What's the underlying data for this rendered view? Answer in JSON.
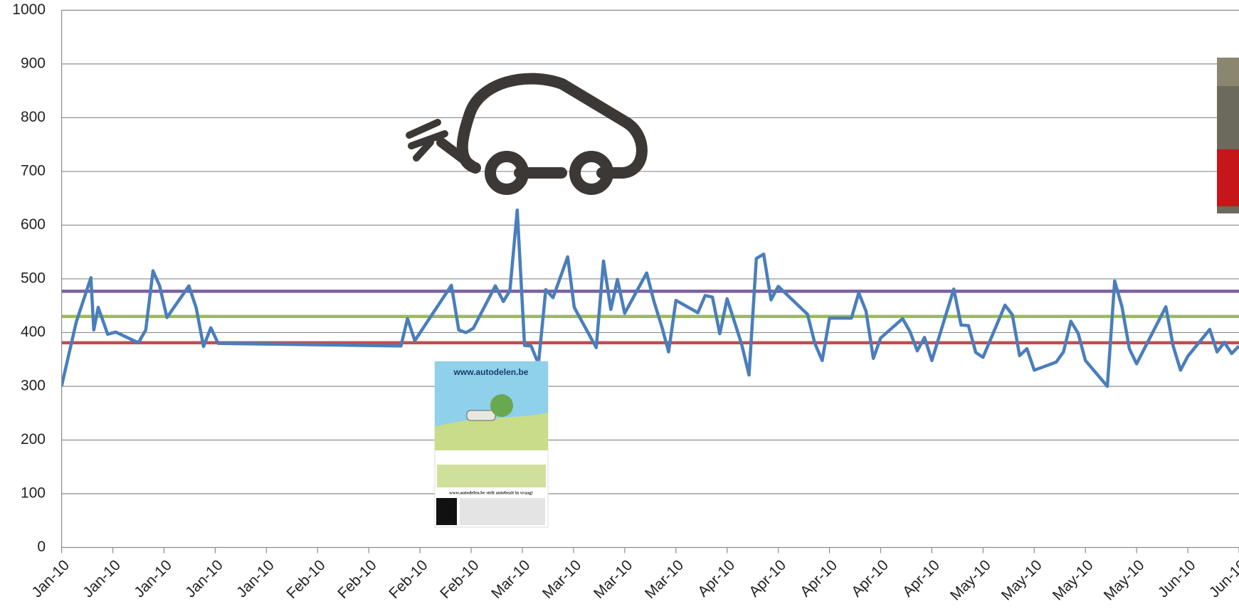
{
  "chart_data": {
    "type": "line",
    "x": [
      0,
      2,
      4,
      4.4,
      5,
      6.3,
      7.4,
      10.5,
      11.5,
      12.5,
      13.4,
      14.4,
      17.4,
      18.4,
      19.4,
      20.4,
      21.4,
      46.4,
      47.3,
      48.3,
      53.3,
      54.3,
      55.3,
      56.3,
      59.3,
      60.4,
      61.3,
      62.3,
      63.3,
      64.2,
      65.2,
      66.2,
      67.2,
      69.2,
      70.1,
      73.1,
      74.1,
      75.1,
      76,
      77,
      80,
      81,
      82.1,
      83,
      84,
      87,
      88,
      89,
      90,
      91,
      93,
      94,
      95,
      96,
      97,
      98,
      102,
      103,
      104,
      105,
      108,
      109,
      110,
      111,
      112,
      115,
      116,
      117,
      118,
      119,
      122,
      123,
      124,
      125,
      126,
      129,
      130,
      131,
      132,
      133,
      136,
      137,
      138,
      139,
      140,
      143,
      144,
      145,
      146,
      147,
      151,
      152,
      153,
      154,
      157,
      158,
      159,
      160,
      161
    ],
    "series": [
      {
        "color": "#4a7ebb",
        "values": [
          301,
          420,
          502,
          405,
          447,
          397,
          401,
          381,
          405,
          515,
          487,
          428,
          487,
          446,
          374,
          409,
          380,
          375,
          426,
          385,
          488,
          405,
          400,
          408,
          487,
          458,
          478,
          628,
          376,
          375,
          342,
          480,
          465,
          541,
          447,
          372,
          533,
          443,
          499,
          436,
          511,
          458,
          410,
          364,
          460,
          437,
          469,
          466,
          398,
          463,
          378,
          321,
          538,
          546,
          461,
          486,
          434,
          380,
          348,
          427,
          427,
          474,
          440,
          352,
          390,
          426,
          402,
          366,
          391,
          348,
          481,
          414,
          413,
          363,
          354,
          451,
          433,
          357,
          370,
          330,
          345,
          364,
          421,
          399,
          348,
          300,
          496,
          448,
          370,
          342,
          448,
          375,
          330,
          356,
          406,
          364,
          382,
          361,
          375
        ]
      }
    ],
    "reference_lines": [
      {
        "value": 477,
        "color": "#7d5fa0"
      },
      {
        "value": 430,
        "color": "#9bbb59"
      },
      {
        "value": 381,
        "color": "#c0504d"
      }
    ],
    "xlim": [
      0,
      161
    ],
    "xticks": [
      {
        "value": 0,
        "label": "Jan-10"
      },
      {
        "value": 7,
        "label": "Jan-10"
      },
      {
        "value": 14,
        "label": "Jan-10"
      },
      {
        "value": 21,
        "label": "Jan-10"
      },
      {
        "value": 28,
        "label": "Jan-10"
      },
      {
        "value": 35,
        "label": "Feb-10"
      },
      {
        "value": 42,
        "label": "Feb-10"
      },
      {
        "value": 49,
        "label": "Feb-10"
      },
      {
        "value": 56,
        "label": "Feb-10"
      },
      {
        "value": 63,
        "label": "Mar-10"
      },
      {
        "value": 70,
        "label": "Mar-10"
      },
      {
        "value": 77,
        "label": "Mar-10"
      },
      {
        "value": 84,
        "label": "Mar-10"
      },
      {
        "value": 91,
        "label": "Apr-10"
      },
      {
        "value": 98,
        "label": "Apr-10"
      },
      {
        "value": 105,
        "label": "Apr-10"
      },
      {
        "value": 112,
        "label": "Apr-10"
      },
      {
        "value": 119,
        "label": "Apr-10"
      },
      {
        "value": 126,
        "label": "May-10"
      },
      {
        "value": 133,
        "label": "May-10"
      },
      {
        "value": 140,
        "label": "May-10"
      },
      {
        "value": 147,
        "label": "May-10"
      },
      {
        "value": 154,
        "label": "Jun-10"
      },
      {
        "value": 161,
        "label": "Jun-10"
      }
    ],
    "ylim": [
      0,
      1000
    ],
    "yticks": [
      0,
      100,
      200,
      300,
      400,
      500,
      600,
      700,
      800,
      900,
      1000
    ],
    "grid": true
  },
  "flyer": {
    "site": "www.autodelen.be",
    "headline": "www.autodelen.be stelt autobezit in vraag!"
  }
}
